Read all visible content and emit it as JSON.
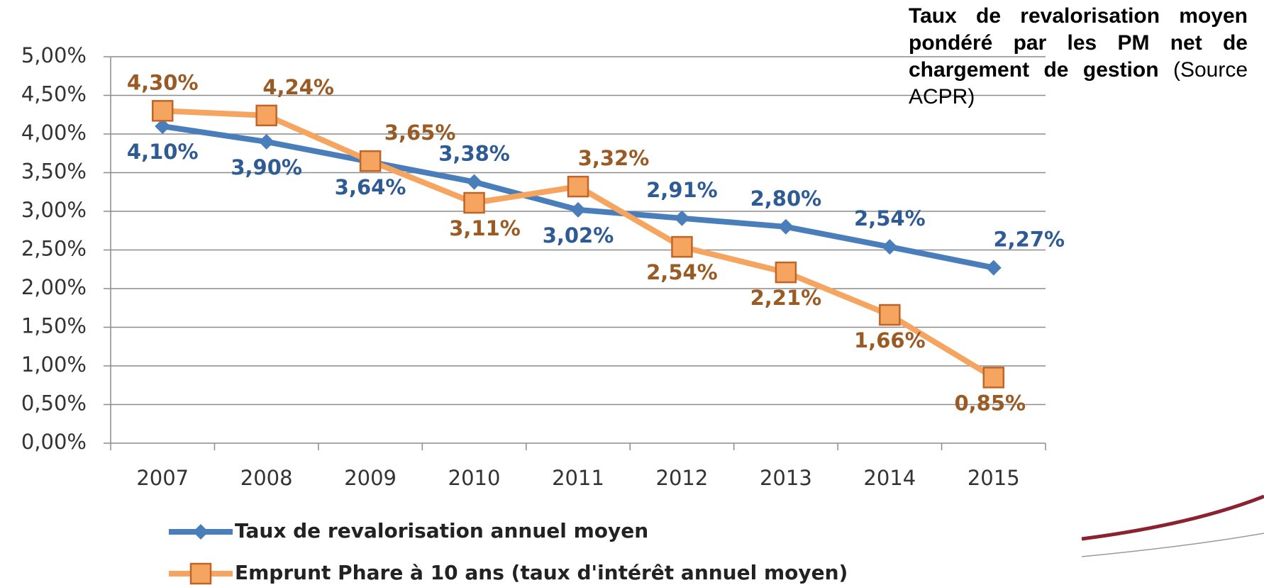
{
  "chart_data": {
    "type": "line",
    "title": "Taux de revalorisation moyen pondéré par les PM net de chargement de gestion",
    "source": "(Source ACPR)",
    "categories": [
      "2007",
      "2008",
      "2009",
      "2010",
      "2011",
      "2012",
      "2013",
      "2014",
      "2015"
    ],
    "series": [
      {
        "name": "Taux de revalorisation annuel moyen",
        "color": "#4a7ebb",
        "label_color": "#2f5b95",
        "marker": "diamond",
        "values": [
          4.1,
          3.9,
          3.64,
          3.38,
          3.02,
          2.91,
          2.8,
          2.54,
          2.27
        ],
        "value_labels": [
          "4,10%",
          "3,90%",
          "3,64%",
          "3,38%",
          "3,02%",
          "2,91%",
          "2,80%",
          "2,54%",
          "2,27%"
        ]
      },
      {
        "name": "Emprunt Phare à 10 ans (taux d'intérêt annuel moyen)",
        "color": "#f5a55f",
        "label_color": "#9a5a24",
        "marker": "square",
        "values": [
          4.3,
          4.24,
          3.65,
          3.11,
          3.32,
          2.54,
          2.21,
          1.66,
          0.85
        ],
        "value_labels": [
          "4,30%",
          "4,24%",
          "3,65%",
          "3,11%",
          "3,32%",
          "2,54%",
          "2,21%",
          "1,66%",
          "0,85%"
        ]
      }
    ],
    "ylim": [
      0,
      5
    ],
    "yticks": [
      {
        "value": 0,
        "label": "0,00%"
      },
      {
        "value": 0.5,
        "label": "0,50%"
      },
      {
        "value": 1,
        "label": "1,00%"
      },
      {
        "value": 1.5,
        "label": "1,50%"
      },
      {
        "value": 2,
        "label": "2,00%"
      },
      {
        "value": 2.5,
        "label": "2,50%"
      },
      {
        "value": 3,
        "label": "3,00%"
      },
      {
        "value": 3.5,
        "label": "3,50%"
      },
      {
        "value": 4,
        "label": "4,00%"
      },
      {
        "value": 4.5,
        "label": "4,50%"
      },
      {
        "value": 5,
        "label": "5,00%"
      }
    ],
    "grid": true
  }
}
